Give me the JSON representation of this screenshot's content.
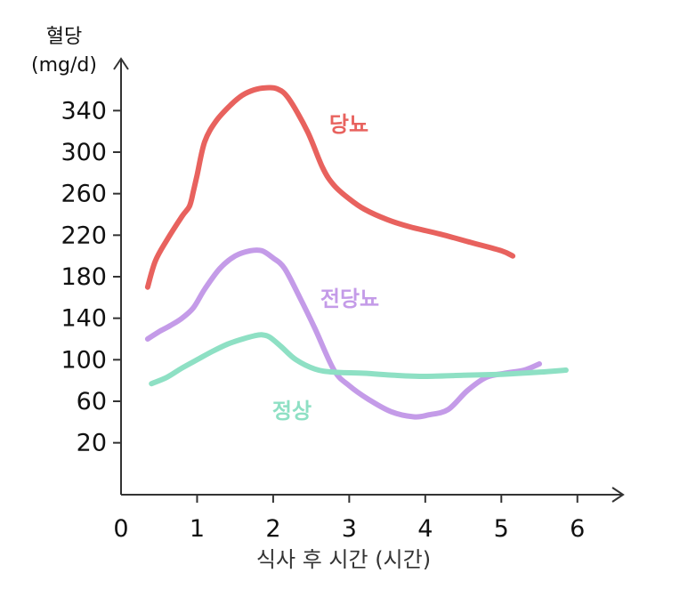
{
  "chart_data": {
    "type": "line",
    "title": "",
    "ylabel_line1": "혈당",
    "ylabel_line2": "(mg/d)",
    "xlabel": "식사 후 시간 (시간)",
    "x_ticks": [
      0,
      1,
      2,
      3,
      4,
      5,
      6
    ],
    "y_ticks": [
      20,
      60,
      100,
      140,
      180,
      220,
      260,
      300,
      340
    ],
    "xlim": [
      0,
      6.6
    ],
    "ylim": [
      -30,
      390
    ],
    "grid": false,
    "series": [
      {
        "name": "당뇨",
        "color": "#e8625e",
        "x": [
          0.35,
          0.45,
          0.6,
          0.8,
          0.9,
          0.95,
          1.0,
          1.1,
          1.25,
          1.45,
          1.6,
          1.75,
          1.9,
          2.05,
          2.2,
          2.45,
          2.65,
          2.8,
          3.0,
          3.2,
          3.5,
          3.8,
          4.2,
          4.6,
          5.0,
          5.15
        ],
        "y": [
          170,
          195,
          215,
          238,
          248,
          262,
          278,
          310,
          330,
          346,
          355,
          360,
          362,
          361,
          352,
          320,
          285,
          268,
          255,
          245,
          235,
          228,
          221,
          213,
          205,
          200
        ]
      },
      {
        "name": "전당뇨",
        "color": "#c49be8",
        "x": [
          0.35,
          0.5,
          0.65,
          0.8,
          0.95,
          1.1,
          1.3,
          1.5,
          1.7,
          1.85,
          2.0,
          2.15,
          2.35,
          2.55,
          2.8,
          3.0,
          3.25,
          3.55,
          3.85,
          4.05,
          4.3,
          4.55,
          4.8,
          5.05,
          5.3,
          5.5
        ],
        "y": [
          120,
          127,
          133,
          140,
          150,
          168,
          188,
          200,
          205,
          205,
          198,
          188,
          160,
          130,
          90,
          75,
          62,
          50,
          45,
          47,
          52,
          70,
          83,
          87,
          90,
          96
        ]
      },
      {
        "name": "정상",
        "color": "#8ee0c4",
        "x": [
          0.4,
          0.6,
          0.8,
          1.0,
          1.2,
          1.4,
          1.6,
          1.75,
          1.85,
          1.95,
          2.1,
          2.3,
          2.55,
          2.8,
          3.2,
          3.6,
          4.0,
          4.5,
          5.0,
          5.5,
          5.85
        ],
        "y": [
          77,
          83,
          92,
          100,
          108,
          115,
          120,
          123,
          124,
          122,
          113,
          100,
          91,
          88,
          87,
          85,
          84,
          85,
          86,
          88,
          90
        ]
      }
    ]
  }
}
